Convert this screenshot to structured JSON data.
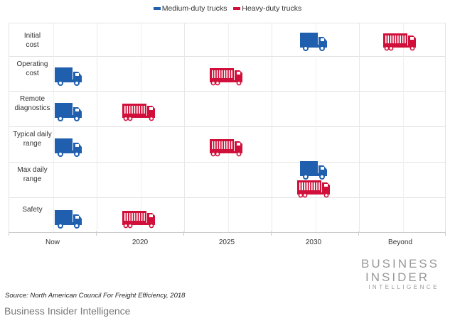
{
  "chart_data": {
    "type": "table",
    "legend": [
      {
        "name": "Medium-duty trucks",
        "color": "#1f5fae"
      },
      {
        "name": "Heavy-duty trucks",
        "color": "#d0103a"
      }
    ],
    "legend_position": "top-center",
    "categories": [
      "Now",
      "2020",
      "2025",
      "2030",
      "Beyond"
    ],
    "rows": [
      {
        "label": "Initial cost",
        "medium": "2030",
        "heavy": "Beyond"
      },
      {
        "label": "Operating cost",
        "medium": "Now",
        "heavy": "2025"
      },
      {
        "label": "Remote diagnostics",
        "medium": "Now",
        "heavy": "2020"
      },
      {
        "label": "Typical daily range",
        "medium": "Now",
        "heavy": "2025"
      },
      {
        "label": "Max daily range",
        "medium": "2030",
        "heavy": "2030"
      },
      {
        "label": "Safety",
        "medium": "Now",
        "heavy": "2020"
      }
    ]
  },
  "logo": {
    "line1": "BUSINESS",
    "line2": "INSIDER",
    "line3": "INTELLIGENCE"
  },
  "source": "Source: North American Council For Freight Efficiency, 2018",
  "footer": "Business Insider Intelligence"
}
